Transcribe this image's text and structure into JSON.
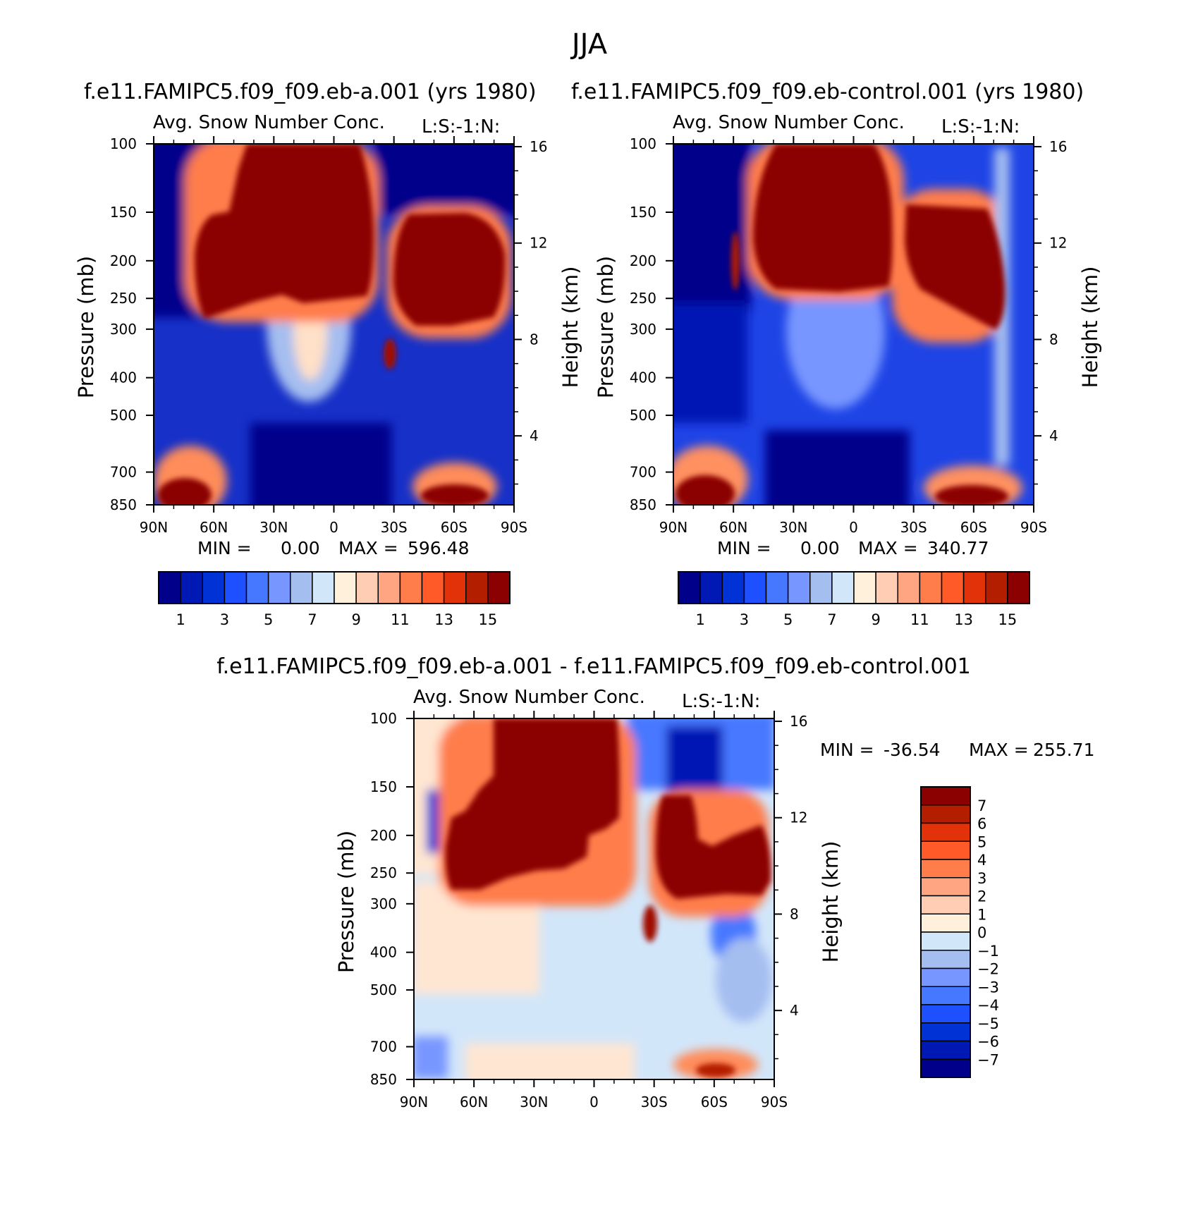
{
  "figure": {
    "season": "JJA",
    "panel_titles": [
      "f.e11.FAMIPC5.f09_f09.eb-a.001 (yrs 1980)",
      "f.e11.FAMIPC5.f09_f09.eb-control.001 (yrs 1980)",
      "f.e11.FAMIPC5.f09_f09.eb-a.001 - f.e11.FAMIPC5.f09_f09.eb-control.001"
    ],
    "subtitle_left": "Avg. Snow Number Conc.",
    "subtitle_right": "L:S:-1:N:",
    "ylabel": "Pressure (mb)",
    "ylabel_right": "Height (km)",
    "min_label": "MIN =",
    "max_label": "MAX ="
  },
  "colors": {
    "abs_scale": [
      "#00008b",
      "#0019b4",
      "#0032d6",
      "#1e50ff",
      "#4678ff",
      "#7896ff",
      "#a5bef0",
      "#d2e6fa",
      "#fff0dc",
      "#ffcdb4",
      "#ffa582",
      "#ff7d4b",
      "#ff5a28",
      "#e1320a",
      "#b41e00",
      "#8b0000"
    ],
    "diff_scale": [
      "#00008b",
      "#0019b4",
      "#0032d6",
      "#1e50ff",
      "#4678ff",
      "#7896ff",
      "#a5bef0",
      "#d2e6fa",
      "#fff0dc",
      "#ffcdb4",
      "#ffa582",
      "#ff7d4b",
      "#ff5a28",
      "#e1320a",
      "#b41e00",
      "#8b0000"
    ]
  },
  "chart_data": [
    {
      "type": "heatmap",
      "title": "f.e11.FAMIPC5.f09_f09.eb-a.001 (yrs 1980)",
      "subtitle": "Avg. Snow Number Conc.",
      "xlabel": "",
      "ylabel": "Pressure (mb)",
      "ylabel_right": "Height (km)",
      "xticks": [
        "90N",
        "60N",
        "30N",
        "0",
        "30S",
        "60S",
        "90S"
      ],
      "yticks": [
        100,
        150,
        200,
        250,
        300,
        400,
        500,
        700,
        850
      ],
      "yticks_right": [
        4,
        8,
        12,
        16
      ],
      "ylim": [
        100,
        850
      ],
      "min": "0.00",
      "max": "596.48",
      "colorbar_labels": [
        "1",
        "3",
        "5",
        "7",
        "9",
        "11",
        "13",
        "15"
      ],
      "colorbar_levels": [
        1,
        2,
        3,
        4,
        5,
        6,
        7,
        8,
        9,
        10,
        11,
        12,
        13,
        14,
        15
      ]
    },
    {
      "type": "heatmap",
      "title": "f.e11.FAMIPC5.f09_f09.eb-control.001 (yrs 1980)",
      "subtitle": "Avg. Snow Number Conc.",
      "xlabel": "",
      "ylabel": "Pressure (mb)",
      "ylabel_right": "Height (km)",
      "xticks": [
        "90N",
        "60N",
        "30N",
        "0",
        "30S",
        "60S",
        "90S"
      ],
      "yticks": [
        100,
        150,
        200,
        250,
        300,
        400,
        500,
        700,
        850
      ],
      "yticks_right": [
        4,
        8,
        12,
        16
      ],
      "ylim": [
        100,
        850
      ],
      "min": "0.00",
      "max": "340.77",
      "colorbar_labels": [
        "1",
        "3",
        "5",
        "7",
        "9",
        "11",
        "13",
        "15"
      ],
      "colorbar_levels": [
        1,
        2,
        3,
        4,
        5,
        6,
        7,
        8,
        9,
        10,
        11,
        12,
        13,
        14,
        15
      ]
    },
    {
      "type": "heatmap",
      "title": "f.e11.FAMIPC5.f09_f09.eb-a.001 - f.e11.FAMIPC5.f09_f09.eb-control.001",
      "subtitle": "Avg. Snow Number Conc.",
      "xlabel": "",
      "ylabel": "Pressure (mb)",
      "ylabel_right": "Height (km)",
      "xticks": [
        "90N",
        "60N",
        "30N",
        "0",
        "30S",
        "60S",
        "90S"
      ],
      "yticks": [
        100,
        150,
        200,
        250,
        300,
        400,
        500,
        700,
        850
      ],
      "yticks_right": [
        4,
        8,
        12,
        16
      ],
      "ylim": [
        100,
        850
      ],
      "min": "-36.54",
      "max": "255.71",
      "colorbar_labels": [
        "7",
        "6",
        "5",
        "4",
        "3",
        "2",
        "1",
        "0",
        "-1",
        "-2",
        "-3",
        "-4",
        "-5",
        "-6",
        "-7"
      ]
    }
  ]
}
